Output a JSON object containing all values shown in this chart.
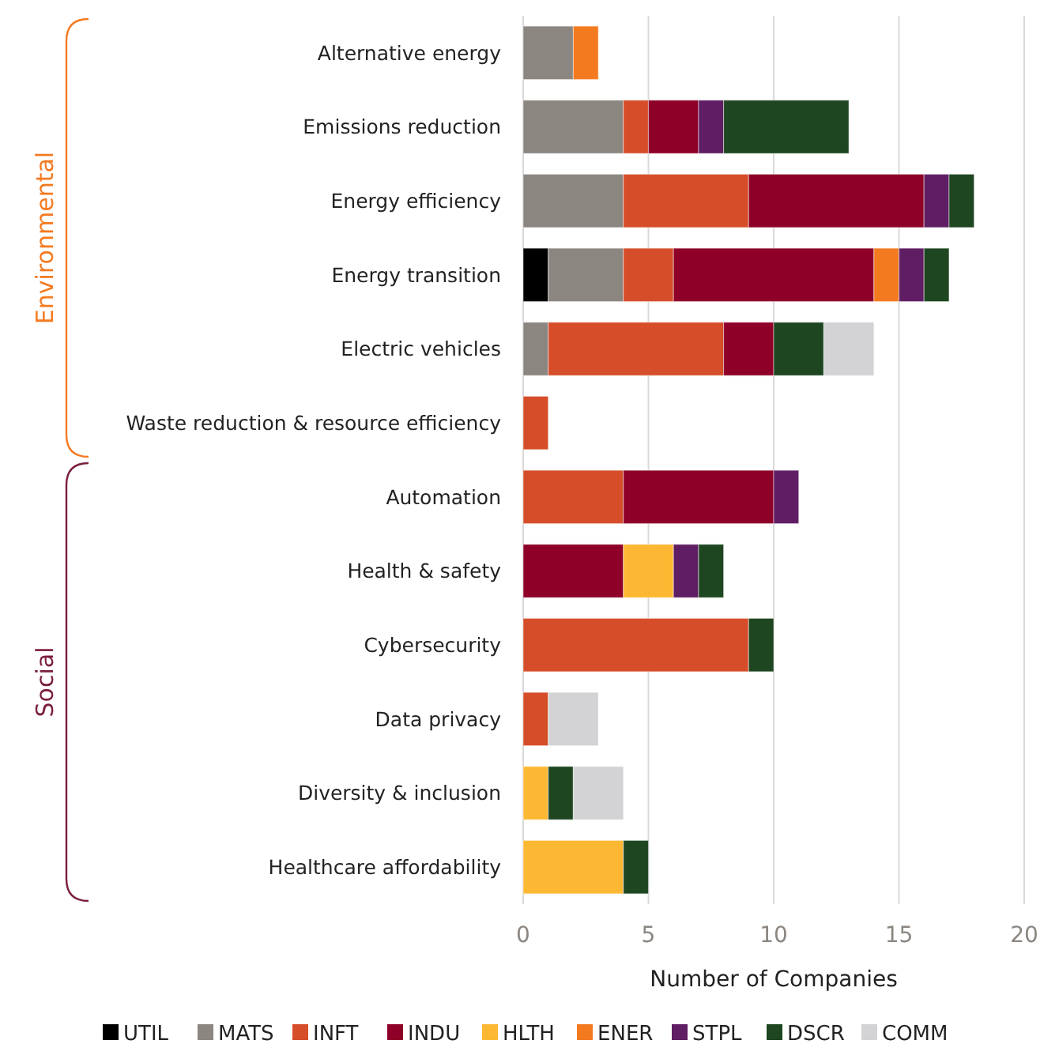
{
  "chart_data": {
    "type": "bar",
    "orientation": "horizontal",
    "stacked": true,
    "xlabel": "Number of Companies",
    "categories": [
      "Alternative energy",
      "Emissions reduction",
      "Energy efficiency",
      "Energy transition",
      "Electric vehicles",
      "Waste reduction & resource efficiency",
      "Automation",
      "Health & safety",
      "Cybersecurity",
      "Data privacy",
      "Diversity & inclusion",
      "Healthcare affordability"
    ],
    "series": [
      {
        "name": "UTIL",
        "color": "#000000",
        "values": [
          null,
          null,
          null,
          1,
          null,
          null,
          null,
          null,
          null,
          null,
          null,
          null
        ]
      },
      {
        "name": "MATS",
        "color": "#8b8680",
        "values": [
          2,
          4,
          4,
          3,
          1,
          null,
          null,
          null,
          null,
          null,
          null,
          null
        ]
      },
      {
        "name": "INFT",
        "color": "#d64d29",
        "values": [
          null,
          1,
          5,
          2,
          7,
          1,
          4,
          null,
          9,
          1,
          null,
          null
        ]
      },
      {
        "name": "INDU",
        "color": "#8e0028",
        "values": [
          null,
          2,
          7,
          8,
          2,
          null,
          6,
          4,
          null,
          null,
          null,
          null
        ]
      },
      {
        "name": "HLTH",
        "color": "#fdb833",
        "values": [
          null,
          null,
          null,
          null,
          null,
          null,
          null,
          2,
          null,
          null,
          1,
          4
        ]
      },
      {
        "name": "ENER",
        "color": "#f47a20",
        "values": [
          1,
          null,
          null,
          1,
          null,
          null,
          null,
          null,
          null,
          null,
          null,
          null
        ]
      },
      {
        "name": "STPL",
        "color": "#5f1e63",
        "values": [
          null,
          1,
          1,
          1,
          null,
          null,
          1,
          1,
          null,
          null,
          null,
          null
        ]
      },
      {
        "name": "DSCR",
        "color": "#1e4620",
        "values": [
          null,
          5,
          1,
          1,
          2,
          null,
          null,
          1,
          1,
          null,
          1,
          1
        ]
      },
      {
        "name": "COMM",
        "color": "#d3d3d5",
        "values": [
          null,
          null,
          null,
          null,
          2,
          null,
          null,
          null,
          null,
          2,
          2,
          null
        ]
      }
    ],
    "xlim": [
      0,
      20
    ],
    "xticks": [
      0,
      5,
      10,
      15,
      20
    ],
    "grid": "x",
    "legend": "bottom",
    "annotations": [
      "Environmental",
      "Social"
    ]
  }
}
